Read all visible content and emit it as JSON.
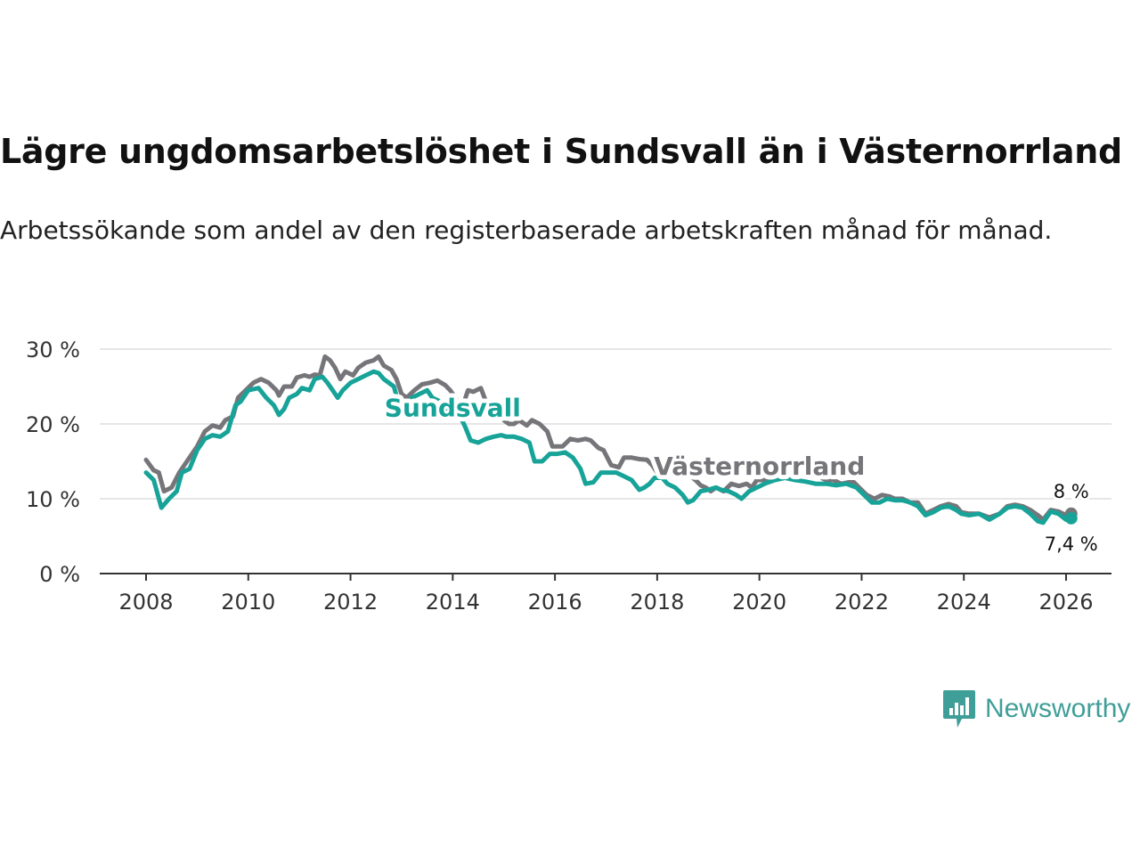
{
  "header": {
    "title": "Lägre ungdomsarbetslöshet i Sundsvall än i Västernorrland",
    "subtitle": "Arbetssökande som andel av den registerbaserade arbetskraften månad för månad."
  },
  "brand": {
    "name": "Newsworthy",
    "icon": "newsworthy-logo-icon",
    "color": "#3f9e98"
  },
  "chart_data": {
    "type": "line",
    "title": "Lägre ungdomsarbetslöshet i Sundsvall än i Västernorrland",
    "subtitle": "Arbetssökande som andel av den registerbaserade arbetskraften månad för månad.",
    "xlabel": "",
    "ylabel": "",
    "x_range": [
      2008.0,
      2026.2
    ],
    "ylim": [
      0,
      30
    ],
    "yticks": [
      0,
      10,
      20,
      30
    ],
    "ytick_labels": [
      "0 %",
      "10 %",
      "20 %",
      "30 %"
    ],
    "xticks": [
      2008,
      2010,
      2012,
      2014,
      2016,
      2018,
      2020,
      2022,
      2024,
      2026
    ],
    "xtick_labels": [
      "2008",
      "2010",
      "2012",
      "2014",
      "2016",
      "2018",
      "2020",
      "2022",
      "2024",
      "2026"
    ],
    "grid": true,
    "series": [
      {
        "name": "Västernorrland",
        "color": "#76767a",
        "label_at": {
          "x": 2020.0,
          "y": 13.2
        },
        "end_label": "8 %",
        "points": [
          [
            2008.0,
            15.2
          ],
          [
            2008.15,
            13.8
          ],
          [
            2008.25,
            13.5
          ],
          [
            2008.35,
            11.0
          ],
          [
            2008.5,
            11.5
          ],
          [
            2008.65,
            13.5
          ],
          [
            2008.8,
            15.0
          ],
          [
            2009.0,
            17.0
          ],
          [
            2009.15,
            19.0
          ],
          [
            2009.3,
            19.8
          ],
          [
            2009.45,
            19.5
          ],
          [
            2009.55,
            20.5
          ],
          [
            2009.7,
            21.0
          ],
          [
            2009.8,
            23.5
          ],
          [
            2009.95,
            24.5
          ],
          [
            2010.1,
            25.5
          ],
          [
            2010.25,
            26.0
          ],
          [
            2010.4,
            25.5
          ],
          [
            2010.55,
            24.5
          ],
          [
            2010.6,
            23.8
          ],
          [
            2010.7,
            25.0
          ],
          [
            2010.85,
            25.0
          ],
          [
            2010.95,
            26.2
          ],
          [
            2011.1,
            26.5
          ],
          [
            2011.2,
            26.3
          ],
          [
            2011.3,
            26.6
          ],
          [
            2011.4,
            26.5
          ],
          [
            2011.5,
            29.0
          ],
          [
            2011.6,
            28.5
          ],
          [
            2011.7,
            27.5
          ],
          [
            2011.8,
            26.0
          ],
          [
            2011.9,
            27.0
          ],
          [
            2012.05,
            26.5
          ],
          [
            2012.15,
            27.5
          ],
          [
            2012.3,
            28.2
          ],
          [
            2012.45,
            28.5
          ],
          [
            2012.55,
            29.0
          ],
          [
            2012.65,
            27.8
          ],
          [
            2012.8,
            27.2
          ],
          [
            2012.9,
            26.0
          ],
          [
            2013.0,
            24.0
          ],
          [
            2013.1,
            23.5
          ],
          [
            2013.25,
            24.5
          ],
          [
            2013.4,
            25.3
          ],
          [
            2013.55,
            25.5
          ],
          [
            2013.7,
            25.8
          ],
          [
            2013.85,
            25.2
          ],
          [
            2013.95,
            24.5
          ],
          [
            2014.1,
            23.0
          ],
          [
            2014.2,
            22.5
          ],
          [
            2014.3,
            24.5
          ],
          [
            2014.4,
            24.3
          ],
          [
            2014.55,
            24.8
          ],
          [
            2014.65,
            23.0
          ],
          [
            2014.75,
            22.0
          ],
          [
            2014.9,
            21.5
          ],
          [
            2015.0,
            20.5
          ],
          [
            2015.1,
            20.0
          ],
          [
            2015.2,
            20.0
          ],
          [
            2015.3,
            20.5
          ],
          [
            2015.45,
            19.8
          ],
          [
            2015.55,
            20.5
          ],
          [
            2015.7,
            20.0
          ],
          [
            2015.85,
            19.0
          ],
          [
            2015.95,
            17.0
          ],
          [
            2016.15,
            17.0
          ],
          [
            2016.3,
            18.0
          ],
          [
            2016.45,
            17.8
          ],
          [
            2016.6,
            18.0
          ],
          [
            2016.7,
            17.8
          ],
          [
            2016.85,
            16.8
          ],
          [
            2016.95,
            16.5
          ],
          [
            2017.1,
            14.5
          ],
          [
            2017.25,
            14.2
          ],
          [
            2017.35,
            15.5
          ],
          [
            2017.5,
            15.5
          ],
          [
            2017.65,
            15.3
          ],
          [
            2017.8,
            15.2
          ],
          [
            2017.9,
            14.5
          ],
          [
            2018.05,
            13.0
          ],
          [
            2018.2,
            13.2
          ],
          [
            2018.3,
            14.0
          ],
          [
            2018.45,
            13.8
          ],
          [
            2018.6,
            13.3
          ],
          [
            2018.75,
            12.5
          ],
          [
            2018.85,
            11.8
          ],
          [
            2018.95,
            11.5
          ],
          [
            2019.05,
            11.0
          ],
          [
            2019.15,
            11.5
          ],
          [
            2019.3,
            11.0
          ],
          [
            2019.45,
            12.0
          ],
          [
            2019.6,
            11.7
          ],
          [
            2019.75,
            12.0
          ],
          [
            2019.85,
            11.5
          ],
          [
            2019.95,
            12.5
          ],
          [
            2020.1,
            12.5
          ],
          [
            2020.25,
            13.0
          ],
          [
            2020.4,
            13.5
          ],
          [
            2020.55,
            15.0
          ],
          [
            2020.65,
            15.2
          ],
          [
            2020.75,
            14.5
          ],
          [
            2020.9,
            14.0
          ],
          [
            2021.0,
            13.5
          ],
          [
            2021.15,
            13.0
          ],
          [
            2021.3,
            12.5
          ],
          [
            2021.45,
            12.5
          ],
          [
            2021.6,
            12.0
          ],
          [
            2021.75,
            12.2
          ],
          [
            2021.85,
            12.2
          ],
          [
            2021.95,
            11.5
          ],
          [
            2022.1,
            10.5
          ],
          [
            2022.25,
            10.0
          ],
          [
            2022.4,
            10.5
          ],
          [
            2022.55,
            10.3
          ],
          [
            2022.65,
            10.0
          ],
          [
            2022.8,
            10.0
          ],
          [
            2022.95,
            9.5
          ],
          [
            2023.1,
            9.5
          ],
          [
            2023.25,
            8.0
          ],
          [
            2023.4,
            8.5
          ],
          [
            2023.55,
            9.0
          ],
          [
            2023.7,
            9.3
          ],
          [
            2023.85,
            9.0
          ],
          [
            2023.95,
            8.2
          ],
          [
            2024.1,
            8.0
          ],
          [
            2024.3,
            8.0
          ],
          [
            2024.5,
            7.5
          ],
          [
            2024.7,
            8.0
          ],
          [
            2024.85,
            9.0
          ],
          [
            2025.0,
            9.2
          ],
          [
            2025.15,
            9.0
          ],
          [
            2025.3,
            8.5
          ],
          [
            2025.45,
            7.8
          ],
          [
            2025.55,
            7.2
          ],
          [
            2025.7,
            8.5
          ],
          [
            2025.85,
            8.3
          ],
          [
            2026.0,
            7.8
          ],
          [
            2026.1,
            8.0
          ]
        ]
      },
      {
        "name": "Sundsvall",
        "color": "#17a398",
        "label_at": {
          "x": 2014.0,
          "y": 21.0
        },
        "end_label": "7,4 %",
        "points": [
          [
            2008.0,
            13.5
          ],
          [
            2008.15,
            12.5
          ],
          [
            2008.3,
            8.8
          ],
          [
            2008.45,
            10.0
          ],
          [
            2008.6,
            11.0
          ],
          [
            2008.7,
            13.5
          ],
          [
            2008.85,
            14.0
          ],
          [
            2009.0,
            16.5
          ],
          [
            2009.15,
            18.0
          ],
          [
            2009.3,
            18.5
          ],
          [
            2009.45,
            18.3
          ],
          [
            2009.6,
            19.0
          ],
          [
            2009.75,
            22.5
          ],
          [
            2009.85,
            23.0
          ],
          [
            2010.0,
            24.5
          ],
          [
            2010.2,
            24.8
          ],
          [
            2010.35,
            23.5
          ],
          [
            2010.5,
            22.5
          ],
          [
            2010.6,
            21.2
          ],
          [
            2010.7,
            22.0
          ],
          [
            2010.8,
            23.5
          ],
          [
            2010.95,
            24.0
          ],
          [
            2011.05,
            24.8
          ],
          [
            2011.2,
            24.5
          ],
          [
            2011.3,
            26.0
          ],
          [
            2011.45,
            26.3
          ],
          [
            2011.55,
            25.5
          ],
          [
            2011.65,
            24.5
          ],
          [
            2011.75,
            23.5
          ],
          [
            2011.85,
            24.5
          ],
          [
            2012.0,
            25.5
          ],
          [
            2012.15,
            26.0
          ],
          [
            2012.3,
            26.5
          ],
          [
            2012.45,
            27.0
          ],
          [
            2012.55,
            26.8
          ],
          [
            2012.65,
            26.0
          ],
          [
            2012.75,
            25.5
          ],
          [
            2012.85,
            25.0
          ],
          [
            2012.95,
            22.5
          ],
          [
            2013.1,
            22.5
          ],
          [
            2013.2,
            23.5
          ],
          [
            2013.35,
            24.0
          ],
          [
            2013.5,
            24.5
          ],
          [
            2013.6,
            23.5
          ],
          [
            2013.75,
            23.0
          ],
          [
            2013.9,
            22.0
          ],
          [
            2014.05,
            21.5
          ],
          [
            2014.15,
            21.0
          ],
          [
            2014.25,
            19.5
          ],
          [
            2014.35,
            17.8
          ],
          [
            2014.5,
            17.5
          ],
          [
            2014.65,
            18.0
          ],
          [
            2014.8,
            18.3
          ],
          [
            2014.95,
            18.5
          ],
          [
            2015.05,
            18.3
          ],
          [
            2015.2,
            18.3
          ],
          [
            2015.35,
            18.0
          ],
          [
            2015.5,
            17.5
          ],
          [
            2015.6,
            15.0
          ],
          [
            2015.75,
            15.0
          ],
          [
            2015.9,
            16.0
          ],
          [
            2016.05,
            16.0
          ],
          [
            2016.2,
            16.2
          ],
          [
            2016.35,
            15.5
          ],
          [
            2016.5,
            14.0
          ],
          [
            2016.6,
            12.0
          ],
          [
            2016.75,
            12.2
          ],
          [
            2016.9,
            13.5
          ],
          [
            2017.05,
            13.5
          ],
          [
            2017.2,
            13.5
          ],
          [
            2017.35,
            13.0
          ],
          [
            2017.5,
            12.5
          ],
          [
            2017.65,
            11.2
          ],
          [
            2017.75,
            11.5
          ],
          [
            2017.85,
            12.0
          ],
          [
            2017.95,
            12.8
          ],
          [
            2018.1,
            12.8
          ],
          [
            2018.2,
            12.0
          ],
          [
            2018.35,
            11.5
          ],
          [
            2018.5,
            10.5
          ],
          [
            2018.6,
            9.5
          ],
          [
            2018.7,
            9.8
          ],
          [
            2018.85,
            11.0
          ],
          [
            2019.0,
            11.2
          ],
          [
            2019.15,
            11.5
          ],
          [
            2019.25,
            11.2
          ],
          [
            2019.4,
            11.0
          ],
          [
            2019.55,
            10.5
          ],
          [
            2019.65,
            10.0
          ],
          [
            2019.8,
            11.0
          ],
          [
            2019.95,
            11.5
          ],
          [
            2020.1,
            12.0
          ],
          [
            2020.3,
            12.5
          ],
          [
            2020.5,
            12.8
          ],
          [
            2020.7,
            12.5
          ],
          [
            2020.9,
            12.3
          ],
          [
            2021.1,
            12.0
          ],
          [
            2021.3,
            12.0
          ],
          [
            2021.5,
            11.8
          ],
          [
            2021.7,
            12.0
          ],
          [
            2021.9,
            11.5
          ],
          [
            2022.05,
            10.5
          ],
          [
            2022.2,
            9.5
          ],
          [
            2022.35,
            9.5
          ],
          [
            2022.5,
            10.0
          ],
          [
            2022.65,
            9.8
          ],
          [
            2022.8,
            9.8
          ],
          [
            2022.95,
            9.5
          ],
          [
            2023.1,
            9.0
          ],
          [
            2023.25,
            7.8
          ],
          [
            2023.4,
            8.2
          ],
          [
            2023.55,
            8.8
          ],
          [
            2023.7,
            9.0
          ],
          [
            2023.85,
            8.5
          ],
          [
            2023.95,
            8.0
          ],
          [
            2024.1,
            7.8
          ],
          [
            2024.3,
            8.0
          ],
          [
            2024.5,
            7.2
          ],
          [
            2024.7,
            8.0
          ],
          [
            2024.85,
            8.8
          ],
          [
            2025.0,
            9.0
          ],
          [
            2025.15,
            8.8
          ],
          [
            2025.3,
            8.0
          ],
          [
            2025.45,
            7.0
          ],
          [
            2025.55,
            6.8
          ],
          [
            2025.7,
            8.3
          ],
          [
            2025.85,
            8.0
          ],
          [
            2026.0,
            7.2
          ],
          [
            2026.1,
            7.4
          ]
        ]
      }
    ]
  }
}
